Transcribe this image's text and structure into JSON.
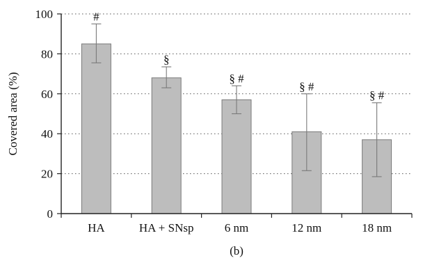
{
  "chart_data": {
    "type": "bar",
    "categories": [
      "HA",
      "HA + SNsp",
      "6 nm",
      "12 nm",
      "18 nm"
    ],
    "values": [
      85,
      68,
      57,
      41,
      37
    ],
    "error_low": [
      75.5,
      63,
      50,
      21.5,
      18.5
    ],
    "error_high": [
      95,
      73.5,
      64,
      60,
      55.5
    ],
    "annotations": [
      "#",
      "§",
      "§ #",
      "§ #",
      "§ #"
    ],
    "ylabel": "Covered area (%)",
    "xlabel": "",
    "ylim": [
      0,
      100
    ],
    "yticks": [
      0,
      20,
      40,
      60,
      80,
      100
    ],
    "grid": "horizontal-dotted",
    "panel_label": "(b)",
    "colors": {
      "bar_fill": "#bdbdbd",
      "bar_edge": "#7a7a7a",
      "error_bar": "#7a7a7a"
    }
  }
}
